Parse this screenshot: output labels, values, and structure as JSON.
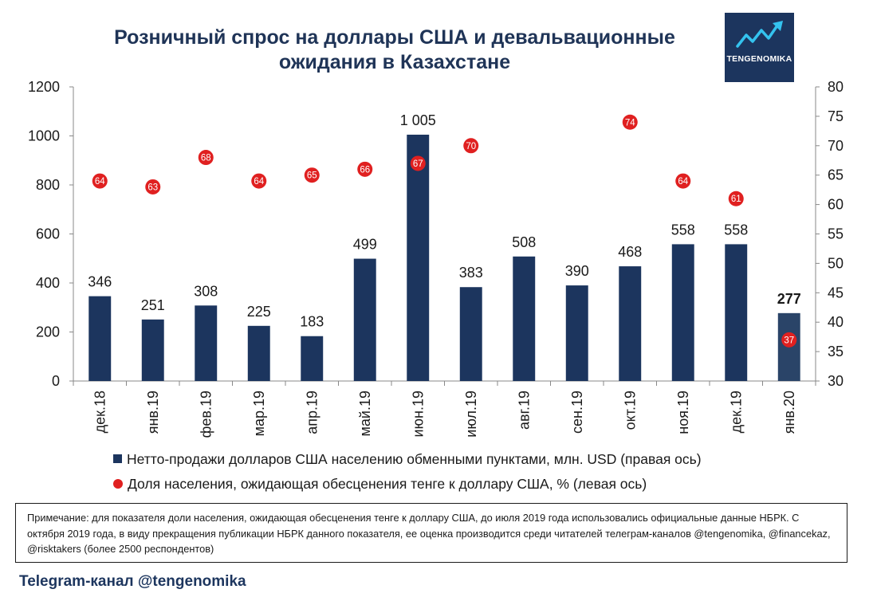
{
  "title_line1": "Розничный спрос на доллары США и девальвационные",
  "title_line2": "ожидания в Казахстане",
  "logo": {
    "text": "TENGENOMIKA",
    "icon": "trend-chart-icon"
  },
  "chart_data": {
    "type": "bar",
    "categories": [
      "дек.18",
      "янв.19",
      "фев.19",
      "мар.19",
      "апр.19",
      "май.19",
      "июн.19",
      "июл.19",
      "авг.19",
      "сен.19",
      "окт.19",
      "ноя.19",
      "дек.19",
      "янв.20"
    ],
    "series": [
      {
        "name": "Нетто-продажи долларов США населению обменными пунктами, млн. USD (правая ось)",
        "type": "bar",
        "axis": "left",
        "color": "#1c355e",
        "values": [
          346,
          251,
          308,
          225,
          183,
          499,
          1005,
          383,
          508,
          390,
          468,
          558,
          558,
          277
        ],
        "labels": [
          "346",
          "251",
          "308",
          "225",
          "183",
          "499",
          "1 005",
          "383",
          "508",
          "390",
          "468",
          "558",
          "558",
          "277"
        ]
      },
      {
        "name": "Доля населения, ожидающая обесценения тенге к доллару США, % (левая ось)",
        "type": "scatter",
        "axis": "right",
        "color": "#e02020",
        "points": [
          {
            "category": "дек.18",
            "value": 64
          },
          {
            "category": "янв.19",
            "value": 63
          },
          {
            "category": "фев.19",
            "value": 68
          },
          {
            "category": "мар.19",
            "value": 64
          },
          {
            "category": "апр.19",
            "value": 65
          },
          {
            "category": "май.19",
            "value": 66
          },
          {
            "category": "июн.19",
            "value": 67
          },
          {
            "category": "июл.19",
            "value": 70
          },
          {
            "category": "окт.19",
            "value": 74
          },
          {
            "category": "ноя.19",
            "value": 64
          },
          {
            "category": "дек.19",
            "value": 61
          },
          {
            "category": "янв.20",
            "value": 37
          }
        ]
      }
    ],
    "ylim": [
      0,
      1200
    ],
    "yticks": [
      0,
      200,
      400,
      600,
      800,
      1000,
      1200
    ],
    "y2lim": [
      30,
      80
    ],
    "y2ticks": [
      30,
      35,
      40,
      45,
      50,
      55,
      60,
      65,
      70,
      75,
      80
    ],
    "legend_position": "bottom"
  },
  "note": "Примечание: для показателя доли населения, ожидающая обесценения тенге к доллару США, до июля 2019 года использовались официальные данные НБРК. С октября 2019 года, в виду прекращения публикации НБРК данного показателя, ее оценка производится среди читателей телеграм-каналов @tengenomika, @financekaz, @risktakers (более 2500 респондентов)",
  "footer": "Telegram-канал @tengenomika"
}
